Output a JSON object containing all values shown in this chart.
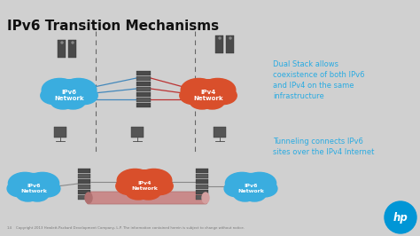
{
  "title": "IPv6 Transition Mechanisms",
  "bg_color": "#d0d0d0",
  "title_color": "#111111",
  "title_fontsize": 11,
  "text_color_blue": "#29abe2",
  "annotation1": "Dual Stack allows\ncoexistence of both IPv6\nand IPv4 on the same\ninfrastructure",
  "annotation2": "Tunneling connects IPv6\nsites over the IPv4 Internet",
  "ipv6_color": "#3aaddf",
  "ipv4_color": "#d94f2b",
  "tunnel_color": "#c98a8a",
  "tunnel_color2": "#b07070",
  "dash_color": "#666666",
  "line_blue": "#4488bb",
  "line_red": "#bb3333",
  "line_gray": "#888888",
  "server_color": "#4a4a4a",
  "server_light": "#666666",
  "device_color": "#555555",
  "hp_blue": "#0096d6",
  "footer_color": "#777777",
  "footer_text": "14    Copyright 2013 Hewlett-Packard Development Company, L.P. The information contained herein is subject to change without notice."
}
